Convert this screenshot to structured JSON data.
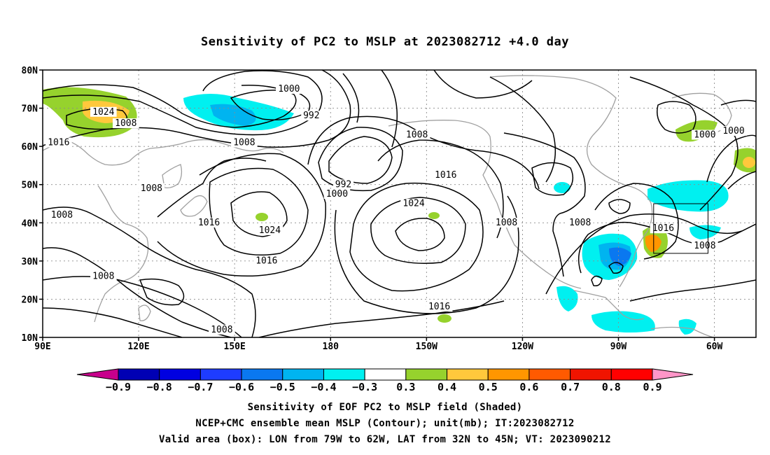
{
  "title": "Sensitivity of PC2 to MSLP at 2023082712 +4.0 day",
  "map": {
    "lat_labels": [
      "80N",
      "70N",
      "60N",
      "50N",
      "40N",
      "30N",
      "20N",
      "10N"
    ],
    "lat_values": [
      80,
      70,
      60,
      50,
      40,
      30,
      20,
      10
    ],
    "lon_labels": [
      "90E",
      "120E",
      "150E",
      "180",
      "150W",
      "120W",
      "90W",
      "60W"
    ],
    "lon_values": [
      90,
      120,
      150,
      180,
      210,
      240,
      270,
      300
    ],
    "lon_range": [
      90,
      313
    ],
    "lat_range": [
      10,
      80
    ],
    "contour_labels": [
      {
        "text": "1000",
        "lon": 167,
        "lat": 74.5
      },
      {
        "text": "992",
        "lon": 174,
        "lat": 67.5
      },
      {
        "text": "1024",
        "lon": 109,
        "lat": 68.5
      },
      {
        "text": "1008",
        "lon": 116,
        "lat": 65.5
      },
      {
        "text": "1016",
        "lon": 95,
        "lat": 60.5
      },
      {
        "text": "1008",
        "lon": 153,
        "lat": 60.5
      },
      {
        "text": "1008",
        "lon": 124,
        "lat": 48.5
      },
      {
        "text": "1008",
        "lon": 96,
        "lat": 41.5
      },
      {
        "text": "1016",
        "lon": 142,
        "lat": 39.5
      },
      {
        "text": "1024",
        "lon": 161,
        "lat": 37.5
      },
      {
        "text": "1016",
        "lon": 160,
        "lat": 29.5
      },
      {
        "text": "1008",
        "lon": 109,
        "lat": 25.5
      },
      {
        "text": "1008",
        "lon": 146,
        "lat": 11.5
      },
      {
        "text": "992",
        "lon": 184,
        "lat": 49.5
      },
      {
        "text": "1000",
        "lon": 182,
        "lat": 47.0
      },
      {
        "text": "1008",
        "lon": 207,
        "lat": 62.5
      },
      {
        "text": "1016",
        "lon": 216,
        "lat": 52.0
      },
      {
        "text": "1024",
        "lon": 206,
        "lat": 44.5
      },
      {
        "text": "1016",
        "lon": 214,
        "lat": 17.5
      },
      {
        "text": "1008",
        "lon": 235,
        "lat": 39.5
      },
      {
        "text": "1008",
        "lon": 258,
        "lat": 39.5
      },
      {
        "text": "1016",
        "lon": 284,
        "lat": 38.0
      },
      {
        "text": "1008",
        "lon": 297,
        "lat": 33.5
      },
      {
        "text": "1000",
        "lon": 297,
        "lat": 62.5
      },
      {
        "text": "1000",
        "lon": 306,
        "lat": 63.5
      }
    ],
    "valid_box": {
      "lon_w": 281,
      "lon_e": 298,
      "lat_s": 32,
      "lat_n": 45
    }
  },
  "colorbar": {
    "labels": [
      "−0.9",
      "−0.8",
      "−0.7",
      "−0.6",
      "−0.5",
      "−0.4",
      "−0.3",
      "0.3",
      "0.4",
      "0.5",
      "0.6",
      "0.7",
      "0.8",
      "0.9"
    ],
    "colors": [
      "#0000b4",
      "#0000e1",
      "#1e3cff",
      "#0a78f0",
      "#00b4f0",
      "#00f0f0",
      "#ffffff",
      "#96d22d",
      "#ffc83c",
      "#ff9600",
      "#ff5a00",
      "#f01400",
      "#ff0000"
    ],
    "left_arrow_color": "#c8008c",
    "right_arrow_color": "#ff96c8"
  },
  "captions": [
    "Sensitivity of EOF PC2 to MSLP field (Shaded)",
    "NCEP+CMC ensemble mean MSLP (Contour); unit(mb); IT:2023082712",
    "Valid area (box): LON from 79W to 62W, LAT from 32N to 45N; VT: 2023090212"
  ]
}
